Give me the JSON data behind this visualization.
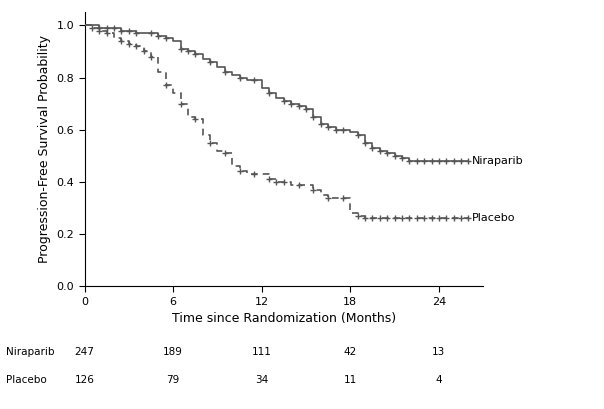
{
  "title": "",
  "xlabel": "Time since Randomization (Months)",
  "ylabel": "Progression-Free Survival Probability",
  "xlim": [
    0,
    27
  ],
  "ylim": [
    0.0,
    1.05
  ],
  "yticks": [
    0.0,
    0.2,
    0.4,
    0.6,
    0.8,
    1.0
  ],
  "xticks": [
    0,
    6,
    12,
    18,
    24
  ],
  "niraparib_label": "Niraparib",
  "placebo_label": "Placebo",
  "niraparib_color": "#555555",
  "placebo_color": "#555555",
  "at_risk_times": [
    0,
    6,
    12,
    18,
    24
  ],
  "at_risk_niraparib": [
    247,
    189,
    111,
    42,
    13
  ],
  "at_risk_placebo": [
    126,
    79,
    34,
    11,
    4
  ],
  "niraparib_times": [
    0,
    0.5,
    1.0,
    1.5,
    2.0,
    2.5,
    3.0,
    3.5,
    4.0,
    4.5,
    5.0,
    5.5,
    6.0,
    6.5,
    7.0,
    7.5,
    8.0,
    8.5,
    9.0,
    9.5,
    10.0,
    10.5,
    11.0,
    11.5,
    12.0,
    12.5,
    13.0,
    13.5,
    14.0,
    14.5,
    15.0,
    15.5,
    16.0,
    16.5,
    17.0,
    17.5,
    18.0,
    18.5,
    19.0,
    19.5,
    20.0,
    20.5,
    21.0,
    21.5,
    22.0,
    22.5,
    23.0,
    23.5,
    24.0,
    25.0,
    26.0
  ],
  "niraparib_surv": [
    1.0,
    1.0,
    0.99,
    0.99,
    0.99,
    0.98,
    0.98,
    0.97,
    0.97,
    0.97,
    0.96,
    0.95,
    0.94,
    0.91,
    0.9,
    0.89,
    0.87,
    0.86,
    0.84,
    0.82,
    0.81,
    0.8,
    0.79,
    0.79,
    0.76,
    0.74,
    0.72,
    0.71,
    0.7,
    0.69,
    0.68,
    0.65,
    0.62,
    0.61,
    0.6,
    0.6,
    0.59,
    0.58,
    0.55,
    0.53,
    0.52,
    0.51,
    0.5,
    0.49,
    0.48,
    0.48,
    0.48,
    0.48,
    0.48,
    0.48,
    0.48
  ],
  "niraparib_censors": [
    1.0,
    1.5,
    2.0,
    2.5,
    3.0,
    3.5,
    4.5,
    5.0,
    5.5,
    6.5,
    7.0,
    7.5,
    8.5,
    9.5,
    10.5,
    11.5,
    12.5,
    13.5,
    14.0,
    14.5,
    15.0,
    15.5,
    16.0,
    16.5,
    17.0,
    17.5,
    18.5,
    19.0,
    19.5,
    20.0,
    20.5,
    21.0,
    21.5,
    22.0,
    22.5,
    23.0,
    23.5,
    24.0,
    24.5,
    25.0,
    25.5,
    26.0
  ],
  "niraparib_censor_surv": [
    0.99,
    0.99,
    0.99,
    0.98,
    0.98,
    0.97,
    0.97,
    0.96,
    0.95,
    0.91,
    0.9,
    0.89,
    0.86,
    0.82,
    0.8,
    0.79,
    0.74,
    0.71,
    0.7,
    0.69,
    0.68,
    0.65,
    0.62,
    0.61,
    0.6,
    0.6,
    0.58,
    0.55,
    0.53,
    0.52,
    0.51,
    0.5,
    0.49,
    0.48,
    0.48,
    0.48,
    0.48,
    0.48,
    0.48,
    0.48,
    0.48,
    0.48
  ],
  "placebo_times": [
    0,
    0.5,
    1.0,
    1.5,
    2.0,
    2.5,
    3.0,
    3.5,
    4.0,
    4.5,
    5.0,
    5.5,
    6.0,
    6.5,
    7.0,
    7.5,
    8.0,
    8.5,
    9.0,
    9.5,
    10.0,
    10.5,
    11.0,
    11.5,
    12.0,
    12.5,
    13.0,
    13.5,
    14.0,
    14.5,
    15.0,
    15.5,
    16.0,
    16.5,
    17.0,
    17.5,
    18.0,
    18.5,
    19.0,
    19.5,
    20.0,
    20.5,
    21.0,
    21.5,
    22.0,
    22.5,
    23.0,
    23.5,
    24.0,
    25.0,
    26.0
  ],
  "placebo_surv": [
    1.0,
    0.99,
    0.98,
    0.97,
    0.95,
    0.94,
    0.93,
    0.92,
    0.9,
    0.88,
    0.82,
    0.77,
    0.74,
    0.7,
    0.65,
    0.64,
    0.58,
    0.55,
    0.52,
    0.51,
    0.46,
    0.44,
    0.43,
    0.43,
    0.43,
    0.41,
    0.4,
    0.4,
    0.39,
    0.39,
    0.39,
    0.37,
    0.35,
    0.34,
    0.34,
    0.34,
    0.28,
    0.27,
    0.26,
    0.26,
    0.26,
    0.26,
    0.26,
    0.26,
    0.26,
    0.26,
    0.26,
    0.26,
    0.26,
    0.26,
    0.26
  ],
  "placebo_censors": [
    0.5,
    1.0,
    1.5,
    2.5,
    3.0,
    3.5,
    4.0,
    4.5,
    5.5,
    6.5,
    7.5,
    8.5,
    9.5,
    10.5,
    11.5,
    12.5,
    13.0,
    13.5,
    14.5,
    15.5,
    16.5,
    17.5,
    18.5,
    19.0,
    19.5,
    20.0,
    20.5,
    21.0,
    21.5,
    22.0,
    22.5,
    23.0,
    23.5,
    24.0,
    24.5,
    25.0,
    25.5,
    26.0
  ],
  "placebo_censor_surv": [
    0.99,
    0.98,
    0.97,
    0.94,
    0.93,
    0.92,
    0.9,
    0.88,
    0.77,
    0.7,
    0.64,
    0.55,
    0.51,
    0.44,
    0.43,
    0.41,
    0.4,
    0.4,
    0.39,
    0.37,
    0.34,
    0.34,
    0.27,
    0.26,
    0.26,
    0.26,
    0.26,
    0.26,
    0.26,
    0.26,
    0.26,
    0.26,
    0.26,
    0.26,
    0.26,
    0.26,
    0.26,
    0.26
  ]
}
